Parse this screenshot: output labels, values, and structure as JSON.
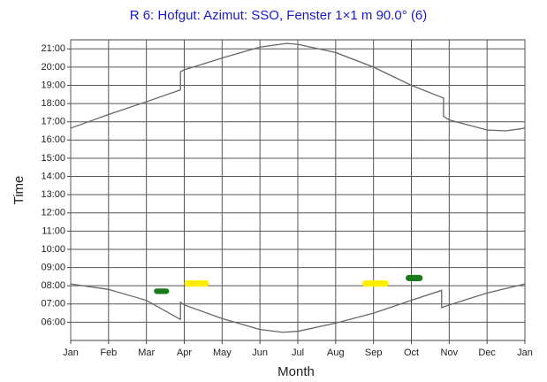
{
  "chart_data": {
    "type": "line",
    "title": "R 6: Hofgut: Azimut: SSO, Fenster 1×1 m  90.0° (6)",
    "x_label": "Month",
    "y_label": "Time",
    "xlim": [
      0,
      12
    ],
    "xticks": [
      {
        "value": 0,
        "label": "Jan"
      },
      {
        "value": 1,
        "label": "Feb"
      },
      {
        "value": 2,
        "label": "Mar"
      },
      {
        "value": 3,
        "label": "Apr"
      },
      {
        "value": 4,
        "label": "May"
      },
      {
        "value": 5,
        "label": "Jun"
      },
      {
        "value": 6,
        "label": "Jul"
      },
      {
        "value": 7,
        "label": "Aug"
      },
      {
        "value": 8,
        "label": "Sep"
      },
      {
        "value": 9,
        "label": "Oct"
      },
      {
        "value": 10,
        "label": "Nov"
      },
      {
        "value": 11,
        "label": "Dec"
      },
      {
        "value": 12,
        "label": "Jan"
      }
    ],
    "ylim": [
      5,
      21.5
    ],
    "yticks": [
      {
        "value": 6,
        "label": "06:00"
      },
      {
        "value": 7,
        "label": "07:00"
      },
      {
        "value": 8,
        "label": "08:00"
      },
      {
        "value": 9,
        "label": "09:00"
      },
      {
        "value": 10,
        "label": "10:00"
      },
      {
        "value": 11,
        "label": "11:00"
      },
      {
        "value": 12,
        "label": "12:00"
      },
      {
        "value": 13,
        "label": "13:00"
      },
      {
        "value": 14,
        "label": "14:00"
      },
      {
        "value": 15,
        "label": "15:00"
      },
      {
        "value": 16,
        "label": "16:00"
      },
      {
        "value": 17,
        "label": "17:00"
      },
      {
        "value": 18,
        "label": "18:00"
      },
      {
        "value": 19,
        "label": "19:00"
      },
      {
        "value": 20,
        "label": "20:00"
      },
      {
        "value": 21,
        "label": "21:00"
      }
    ],
    "grid": true,
    "series": [
      {
        "color": "#666666",
        "x": [
          0,
          1,
          2,
          2.9,
          2.9,
          3,
          4,
          5,
          5.7,
          6,
          7,
          8,
          9,
          9.85,
          9.85,
          10,
          11,
          11.5,
          12
        ],
        "values": [
          16.65,
          17.4,
          18.1,
          18.75,
          19.75,
          19.85,
          20.5,
          21.1,
          21.3,
          21.25,
          20.8,
          20.0,
          19.0,
          18.3,
          17.3,
          17.1,
          16.55,
          16.5,
          16.65
        ]
      },
      {
        "color": "#666666",
        "x": [
          0,
          1,
          2,
          2.9,
          2.9,
          3,
          4,
          5,
          5.6,
          6,
          7,
          8,
          9,
          9.8,
          9.8,
          10,
          11,
          12
        ],
        "values": [
          8.1,
          7.8,
          7.2,
          6.15,
          7.1,
          6.95,
          6.2,
          5.6,
          5.45,
          5.5,
          5.95,
          6.5,
          7.2,
          7.75,
          6.8,
          6.95,
          7.6,
          8.1
        ]
      }
    ],
    "shadow_periods": [
      {
        "color": "#1a7a1a",
        "x": [
          2.2,
          2.6
        ],
        "y": [
          7.55,
          7.85
        ]
      },
      {
        "color": "#ffee00",
        "x": [
          3.0,
          3.65
        ],
        "y": [
          7.95,
          8.3
        ]
      },
      {
        "color": "#ffee00",
        "x": [
          7.7,
          8.4
        ],
        "y": [
          7.95,
          8.3
        ]
      },
      {
        "color": "#1a7a1a",
        "x": [
          8.85,
          9.3
        ],
        "y": [
          8.25,
          8.6
        ]
      }
    ]
  }
}
